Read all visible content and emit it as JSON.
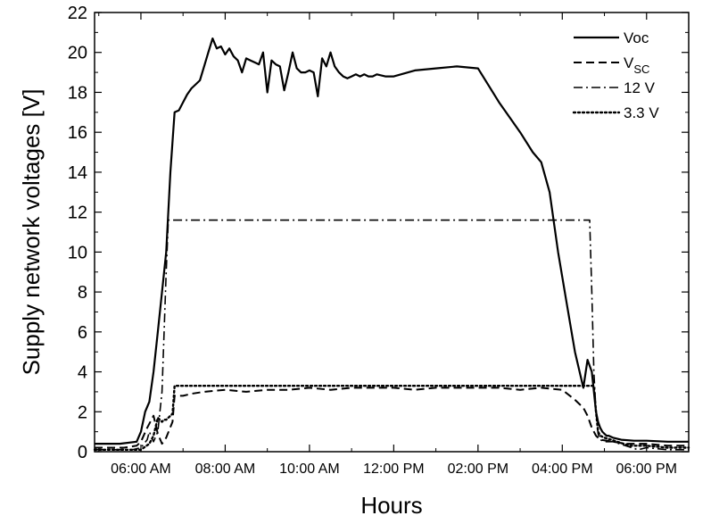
{
  "chart_data": {
    "type": "line",
    "xlabel": "Hours",
    "ylabel": "Supply network voltages [V]",
    "x_unit": "hours of day",
    "xlim": [
      4.9,
      19.0
    ],
    "ylim": [
      0,
      22
    ],
    "x_tick_values": [
      6,
      8,
      10,
      12,
      14,
      16,
      18
    ],
    "x_tick_labels": [
      "06:00 AM",
      "08:00 AM",
      "10:00 AM",
      "12:00 PM",
      "02:00 PM",
      "04:00 PM",
      "06:00 PM"
    ],
    "y_tick_values": [
      0,
      2,
      4,
      6,
      8,
      10,
      12,
      14,
      16,
      18,
      20,
      22
    ],
    "y_tick_labels": [
      "0",
      "2",
      "4",
      "6",
      "8",
      "10",
      "12",
      "14",
      "16",
      "18",
      "20",
      "22"
    ],
    "legend_position": "top-right",
    "grid": false,
    "series": [
      {
        "name": "Voc",
        "style": "solid",
        "x": [
          4.9,
          5.5,
          5.9,
          6.0,
          6.1,
          6.2,
          6.3,
          6.4,
          6.5,
          6.6,
          6.7,
          6.8,
          6.9,
          7.0,
          7.1,
          7.2,
          7.3,
          7.4,
          7.5,
          7.6,
          7.7,
          7.8,
          7.9,
          8.0,
          8.1,
          8.2,
          8.3,
          8.4,
          8.5,
          8.6,
          8.7,
          8.8,
          8.9,
          9.0,
          9.1,
          9.2,
          9.3,
          9.4,
          9.5,
          9.6,
          9.7,
          9.8,
          9.9,
          10.0,
          10.1,
          10.2,
          10.3,
          10.4,
          10.5,
          10.6,
          10.7,
          10.8,
          10.9,
          11.0,
          11.1,
          11.2,
          11.3,
          11.4,
          11.5,
          11.6,
          11.8,
          12.0,
          12.5,
          13.0,
          13.5,
          14.0,
          14.5,
          15.0,
          15.3,
          15.5,
          15.7,
          15.9,
          16.1,
          16.3,
          16.5,
          16.6,
          16.7,
          16.8,
          16.85,
          16.9,
          16.95,
          17.0,
          17.05,
          17.1,
          17.2,
          17.4,
          17.7,
          18.0,
          18.5,
          19.0
        ],
        "y": [
          0.4,
          0.4,
          0.5,
          1.0,
          2.0,
          2.5,
          4.0,
          6.0,
          8.0,
          10.0,
          14.0,
          17.0,
          17.1,
          17.5,
          17.9,
          18.2,
          18.4,
          18.6,
          19.3,
          20.0,
          20.7,
          20.2,
          20.3,
          19.9,
          20.2,
          19.8,
          19.6,
          19.0,
          19.7,
          19.6,
          19.5,
          19.4,
          20.0,
          18.0,
          19.6,
          19.4,
          19.3,
          18.1,
          19.0,
          20.0,
          19.2,
          19.0,
          19.0,
          19.1,
          19.0,
          17.8,
          19.7,
          19.3,
          20.0,
          19.3,
          19.0,
          18.8,
          18.7,
          18.8,
          18.9,
          18.8,
          18.9,
          18.8,
          18.8,
          18.9,
          18.8,
          18.8,
          19.1,
          19.2,
          19.3,
          19.2,
          17.5,
          16.0,
          15.0,
          14.5,
          13.0,
          10.0,
          7.5,
          5.0,
          3.2,
          4.6,
          4.0,
          2.0,
          1.5,
          1.2,
          1.0,
          0.9,
          0.8,
          0.8,
          0.7,
          0.6,
          0.55,
          0.55,
          0.5,
          0.5
        ]
      },
      {
        "name": "VSC",
        "style": "dashed",
        "x": [
          4.9,
          5.6,
          5.9,
          6.0,
          6.15,
          6.3,
          6.4,
          6.5,
          6.6,
          6.75,
          6.8,
          6.9,
          7.0,
          7.2,
          7.5,
          8.0,
          8.5,
          9.0,
          9.5,
          10.0,
          10.5,
          11.0,
          11.5,
          12.0,
          12.5,
          13.0,
          13.5,
          14.0,
          14.5,
          15.0,
          15.5,
          16.0,
          16.3,
          16.5,
          16.6,
          16.7,
          16.8,
          16.9,
          17.2,
          17.5,
          18.0,
          18.5,
          19.0
        ],
        "y": [
          0.2,
          0.2,
          0.3,
          0.5,
          1.2,
          1.8,
          0.9,
          0.4,
          0.7,
          1.5,
          2.8,
          2.8,
          2.8,
          2.9,
          3.0,
          3.1,
          3.0,
          3.1,
          3.1,
          3.2,
          3.1,
          3.2,
          3.2,
          3.2,
          3.1,
          3.2,
          3.2,
          3.2,
          3.2,
          3.1,
          3.2,
          3.1,
          2.6,
          2.2,
          1.8,
          1.2,
          0.8,
          0.6,
          0.5,
          0.4,
          0.4,
          0.3,
          0.3
        ]
      },
      {
        "name": "12 V",
        "style": "dash-dot",
        "x": [
          4.9,
          5.8,
          6.0,
          6.15,
          6.2,
          6.3,
          6.4,
          6.5,
          6.6,
          6.65,
          7.0,
          8.0,
          10.0,
          12.0,
          14.0,
          16.0,
          16.65,
          16.7,
          16.75,
          16.8,
          16.85,
          16.9,
          17.0,
          17.2,
          17.5,
          17.8,
          18.0,
          18.5,
          19.0
        ],
        "y": [
          0.1,
          0.1,
          0.2,
          0.6,
          1.0,
          0.5,
          1.0,
          3.0,
          9.0,
          11.6,
          11.6,
          11.6,
          11.6,
          11.6,
          11.6,
          11.6,
          11.6,
          8.0,
          4.0,
          2.0,
          0.9,
          0.6,
          0.5,
          0.5,
          0.3,
          0.1,
          0.2,
          0.1,
          0.1
        ]
      },
      {
        "name": "3.3 V",
        "style": "dotted",
        "x": [
          4.9,
          5.8,
          6.0,
          6.2,
          6.3,
          6.4,
          6.5,
          6.55,
          6.6,
          6.75,
          6.8,
          6.85,
          7.0,
          8.0,
          10.0,
          12.0,
          14.0,
          16.0,
          16.75,
          16.8,
          16.85,
          16.9,
          17.0,
          17.3,
          17.6,
          18.0,
          18.5,
          19.0
        ],
        "y": [
          0.1,
          0.1,
          0.1,
          0.4,
          0.8,
          1.7,
          1.5,
          1.6,
          1.6,
          1.9,
          3.3,
          3.3,
          3.3,
          3.3,
          3.3,
          3.3,
          3.3,
          3.3,
          3.3,
          2.0,
          1.0,
          0.8,
          0.7,
          0.5,
          0.3,
          0.3,
          0.2,
          0.2
        ]
      }
    ],
    "legend": [
      {
        "label": "Voc",
        "style": "solid"
      },
      {
        "label": "V",
        "sub": "SC",
        "style": "dashed"
      },
      {
        "label": "12 V",
        "style": "dash-dot"
      },
      {
        "label": "3.3 V",
        "style": "dotted"
      }
    ]
  }
}
